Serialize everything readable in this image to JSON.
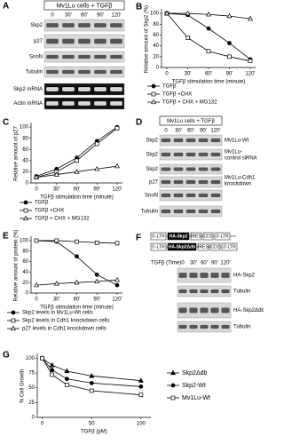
{
  "chart_data": [
    {
      "type": "line",
      "panel": "B",
      "ylabel": "Relative amount of Skp2 (%)",
      "xlabel": "TGFβ stimulation time (minute)",
      "categories": [
        "0",
        "30'",
        "60'",
        "90'",
        "120'"
      ],
      "ylim": [
        0,
        105
      ],
      "yticks": [
        0,
        20,
        40,
        60,
        80,
        100
      ],
      "legend": "below",
      "series": [
        {
          "name": "TGFβ",
          "color": "#000000",
          "marker": "filled-circle",
          "values": [
            100,
            97,
            72,
            45,
            15
          ]
        },
        {
          "name": "TGFβ +CHX",
          "color": "#000000",
          "marker": "open-square",
          "values": [
            100,
            55,
            30,
            20,
            12
          ]
        },
        {
          "name": "TGFβ + CHX + MG132",
          "color": "#000000",
          "marker": "open-triangle",
          "values": [
            100,
            100,
            98,
            95,
            90
          ]
        }
      ]
    },
    {
      "type": "line",
      "panel": "C",
      "ylabel": "Relative amount of p27",
      "xlabel": "TGFβ stimulation time (minute)",
      "categories": [
        "0",
        "30'",
        "60'",
        "90'",
        "120'"
      ],
      "ylim": [
        0,
        105
      ],
      "yticks": [
        0,
        20,
        40,
        60,
        80,
        100
      ],
      "legend": "below",
      "series": [
        {
          "name": "TGFβ",
          "color": "#000000",
          "marker": "filled-circle",
          "values": [
            12,
            25,
            45,
            75,
            100
          ]
        },
        {
          "name": "TGFβ +CHX",
          "color": "#000000",
          "marker": "open-square",
          "values": [
            10,
            20,
            40,
            70,
            98
          ]
        },
        {
          "name": "TGFβ + CHX + MG132",
          "color": "#000000",
          "marker": "open-triangle",
          "values": [
            10,
            15,
            20,
            25,
            30
          ]
        }
      ]
    },
    {
      "type": "line",
      "panel": "E",
      "ylabel": "Relative amount of protein (%)",
      "xlabel": "TGFβ stimulation time (minute)",
      "categories": [
        "0",
        "30'",
        "60'",
        "90'",
        "120'"
      ],
      "ylim": [
        0,
        105
      ],
      "yticks": [
        0,
        20,
        40,
        60,
        80,
        100
      ],
      "legend": "below",
      "series": [
        {
          "name": "Skp2 levels in Mv1Lu-Wt cells",
          "color": "#000000",
          "marker": "filled-circle",
          "values": [
            100,
            98,
            70,
            35,
            15
          ]
        },
        {
          "name": "Skp2 levels in Cdh1 knockdown cells",
          "color": "#000000",
          "marker": "open-square",
          "values": [
            100,
            100,
            98,
            96,
            95
          ]
        },
        {
          "name": "p27 levels in Cdh1 knockdown cells",
          "color": "#000000",
          "marker": "open-triangle",
          "values": [
            15,
            18,
            20,
            22,
            25
          ]
        }
      ]
    },
    {
      "type": "line",
      "panel": "G",
      "ylabel": "% Cell Growth",
      "xlabel": "TGFβ (pM)",
      "x": [
        0,
        10,
        25,
        50,
        100
      ],
      "xlim": [
        -5,
        110
      ],
      "xticks": [
        0,
        50,
        100
      ],
      "ylim": [
        0,
        105
      ],
      "yticks": [
        0,
        25,
        50,
        75,
        100
      ],
      "legend": "right",
      "series": [
        {
          "name": "Skp2Δdb",
          "color": "#000000",
          "marker": "filled-triangle",
          "values": [
            100,
            88,
            78,
            70,
            62
          ]
        },
        {
          "name": "Skp2-Wt",
          "color": "#000000",
          "marker": "filled-circle",
          "values": [
            100,
            80,
            65,
            58,
            52
          ]
        },
        {
          "name": "Mv1Lu-Wt",
          "color": "#000000",
          "marker": "open-square",
          "values": [
            100,
            72,
            55,
            45,
            38
          ]
        }
      ]
    }
  ],
  "blots": {
    "A": {
      "panel": "A",
      "header": "Mv1Lu cells + TGFβ",
      "times": [
        "0",
        "30'",
        "60'",
        "90'",
        "120'"
      ],
      "rows": [
        "Skp2",
        "p27",
        "SnoN",
        "Tubulin",
        "Skp2 mRNA",
        "Actin mRNA"
      ]
    },
    "D": {
      "panel": "D",
      "header": "Mv1Lu cells + TGFβ",
      "times": [
        "0",
        "30'",
        "60'",
        "90'",
        "120'"
      ],
      "rows": [
        "Skp2",
        "Skp2",
        "Skp2",
        "p27",
        "SnoN",
        "Tubulin"
      ],
      "groups": [
        [
          "Mv1Lu-Wt"
        ],
        [
          "Mv1Lu-",
          "control siRNA"
        ],
        [
          "Mv1Lu-Cdh1",
          "knockdown"
        ]
      ]
    },
    "F": {
      "panel": "F",
      "constructs": [
        [
          "5'-LTR",
          "HA-Skp2",
          "IRES",
          "CD2",
          "3'-LTR"
        ],
        [
          "5'-LTR",
          "HA-Skp2Δdb",
          "IRES",
          "CD2",
          "3'-LTR"
        ]
      ],
      "time_label": "TGFβ (Time)",
      "times": [
        "0",
        "30'",
        "60'",
        "90'",
        "120'"
      ],
      "rows": [
        "HA-Skp2",
        "Tubulin",
        "HA-Skp2Δdb",
        "Tubulin"
      ]
    }
  }
}
